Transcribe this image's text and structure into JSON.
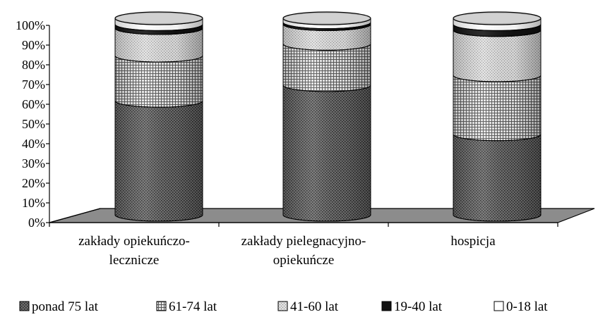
{
  "chart_data": {
    "type": "bar",
    "stacked": true,
    "style": "3d-cylinder",
    "percent_stacked": true,
    "categories": [
      [
        "zakłady opiekuńczo-",
        "lecznicze"
      ],
      [
        "zakłady pielegnacyjno-",
        "opiekuńcze"
      ],
      [
        "hospicja"
      ]
    ],
    "y_ticks": [
      "0%",
      "10%",
      "20%",
      "30%",
      "40%",
      "50%",
      "60%",
      "70%",
      "80%",
      "90%",
      "100%"
    ],
    "ylim": [
      0,
      100
    ],
    "grid": false,
    "legend_position": "bottom",
    "series": [
      {
        "name": "ponad 75 lat",
        "values": [
          58,
          66,
          41
        ],
        "pattern": "dark-dots"
      },
      {
        "name": "61-74 lat",
        "values": [
          23,
          21,
          30
        ],
        "pattern": "grid"
      },
      {
        "name": "41-60 lat",
        "values": [
          14,
          10,
          23
        ],
        "pattern": "light-dots"
      },
      {
        "name": "19-40 lat",
        "values": [
          2,
          1,
          3
        ],
        "pattern": "black"
      },
      {
        "name": "0-18 lat",
        "values": [
          3,
          2,
          3
        ],
        "pattern": "white"
      }
    ]
  }
}
